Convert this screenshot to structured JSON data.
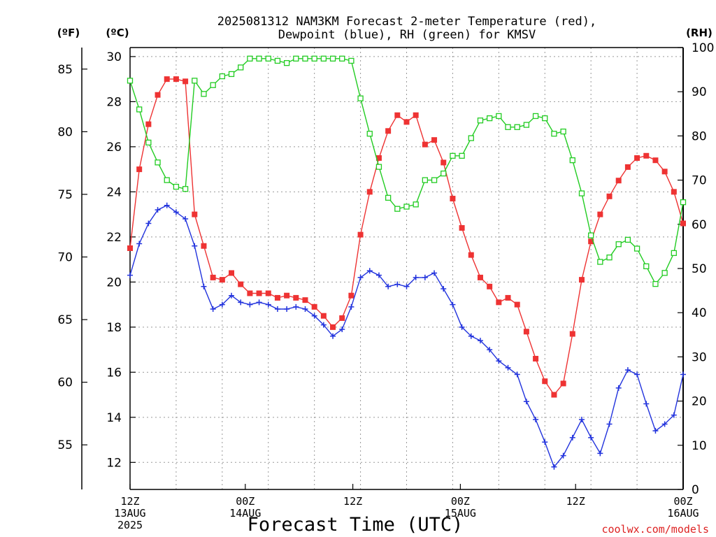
{
  "chart_data": {
    "type": "line",
    "title": "2025081312 NAM3KM Forecast 2-meter Temperature (red),",
    "subtitle": "Dewpoint (blue), RH (green) for KMSV",
    "xlabel": "Forecast Time (UTC)",
    "watermark": "coolwx.com/models",
    "axes": {
      "left_f_label": "(ºF)",
      "left_c_label": "(ºC)",
      "right_rh_label": "(RH)",
      "c_ylim": [
        10.8,
        30.4
      ],
      "rh_ylim": [
        0,
        100
      ],
      "x_hours_range": [
        0,
        72
      ],
      "c_ticks": [
        12,
        14,
        16,
        18,
        20,
        22,
        24,
        26,
        28,
        30
      ],
      "f_ticks": [
        55,
        60,
        65,
        70,
        75,
        80,
        85
      ],
      "rh_ticks": [
        0,
        10,
        20,
        30,
        40,
        50,
        60,
        70,
        80,
        90,
        100
      ],
      "x_ticks": [
        {
          "hour": 0,
          "lines": [
            "12Z",
            "13AUG",
            "2025"
          ]
        },
        {
          "hour": 15,
          "lines": [
            "00Z",
            "14AUG"
          ]
        },
        {
          "hour": 29,
          "lines": [
            "12Z"
          ]
        },
        {
          "hour": 43,
          "lines": [
            "00Z",
            "15AUG"
          ]
        },
        {
          "hour": 58,
          "lines": [
            "12Z"
          ]
        },
        {
          "hour": 72,
          "lines": [
            "00Z",
            "16AUG"
          ]
        }
      ],
      "grid": true
    },
    "colors": {
      "temperature": "#ee3333",
      "dewpoint": "#2233dd",
      "rh": "#22cc22",
      "grid": "#999999",
      "watermark": "#dd2222"
    },
    "series": [
      {
        "name": "Temperature",
        "unit": "C",
        "marker": "filled-square",
        "values": [
          21.5,
          25.0,
          27.0,
          28.3,
          29.0,
          29.0,
          28.9,
          23.0,
          21.6,
          20.2,
          20.1,
          20.4,
          19.9,
          19.5,
          19.5,
          19.5,
          19.3,
          19.4,
          19.3,
          19.2,
          18.9,
          18.5,
          18.0,
          18.4,
          19.4,
          22.1,
          24.0,
          25.5,
          26.7,
          27.4,
          27.1,
          27.4,
          26.1,
          26.3,
          25.3,
          23.7,
          22.4,
          21.2,
          20.2,
          19.8,
          19.1,
          19.3,
          19.0,
          17.8,
          16.6,
          15.6,
          15.0,
          15.5,
          17.7,
          20.1,
          21.8,
          23.0,
          23.8,
          24.5,
          25.1,
          25.5,
          25.6,
          25.4,
          24.9,
          24.0,
          22.6
        ]
      },
      {
        "name": "Dewpoint",
        "unit": "C",
        "marker": "plus",
        "values": [
          20.3,
          21.7,
          22.6,
          23.2,
          23.4,
          23.1,
          22.8,
          21.6,
          19.8,
          18.8,
          19.0,
          19.4,
          19.1,
          19.0,
          19.1,
          19.0,
          18.8,
          18.8,
          18.9,
          18.8,
          18.5,
          18.1,
          17.6,
          17.9,
          18.9,
          20.2,
          20.5,
          20.3,
          19.8,
          19.9,
          19.8,
          20.2,
          20.2,
          20.4,
          19.7,
          19.0,
          18.0,
          17.6,
          17.4,
          17.0,
          16.5,
          16.2,
          15.9,
          14.7,
          13.9,
          12.9,
          11.8,
          12.3,
          13.1,
          13.9,
          13.1,
          12.4,
          13.7,
          15.3,
          16.1,
          15.9,
          14.6,
          13.4,
          13.7,
          14.1,
          15.9
        ]
      },
      {
        "name": "RH",
        "unit": "%",
        "marker": "open-square",
        "values": [
          92.5,
          86.0,
          78.5,
          74.0,
          70.0,
          68.5,
          68.0,
          92.5,
          89.5,
          91.5,
          93.5,
          94.0,
          95.5,
          97.5,
          97.5,
          97.5,
          97.0,
          96.5,
          97.5,
          97.5,
          97.5,
          97.5,
          97.5,
          97.5,
          97.0,
          88.5,
          80.5,
          73.0,
          66.0,
          63.5,
          64.0,
          64.5,
          70.0,
          70.0,
          71.5,
          75.5,
          75.5,
          79.5,
          83.5,
          84.0,
          84.5,
          82.0,
          82.0,
          82.5,
          84.5,
          84.0,
          80.5,
          81.0,
          74.5,
          67.0,
          57.5,
          51.5,
          52.5,
          55.5,
          56.5,
          54.5,
          50.5,
          46.5,
          49.0,
          53.5,
          65.0
        ]
      }
    ]
  }
}
